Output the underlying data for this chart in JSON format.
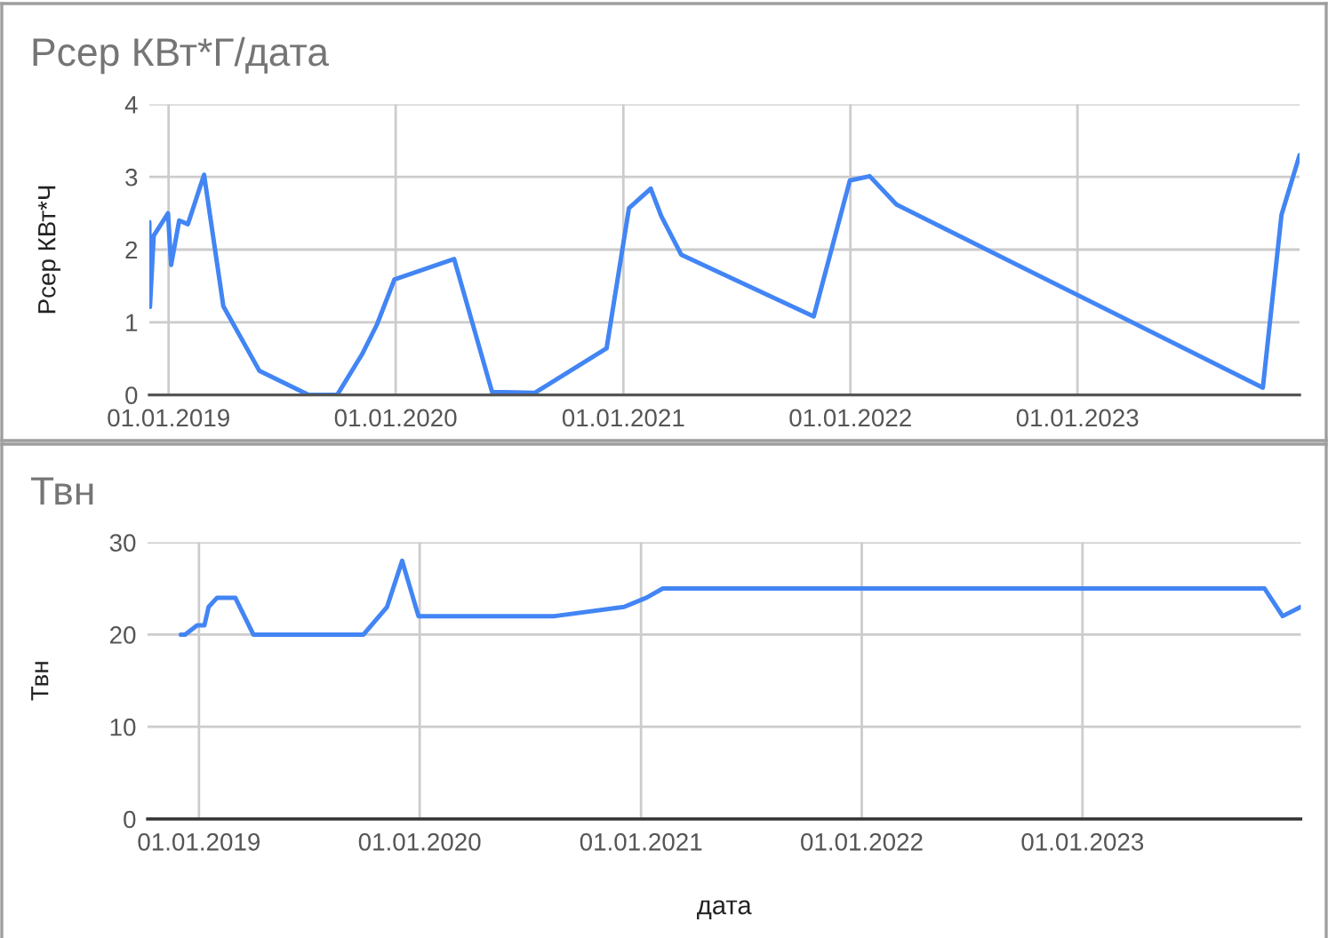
{
  "chart_data": [
    {
      "type": "line",
      "title": "Рсер КВт*Г/дата",
      "ylabel": "Рсер КВт*Ч",
      "x": [
        "2018-12-01",
        "2018-12-02",
        "2018-12-08",
        "2018-12-31",
        "2019-01-05",
        "2019-01-18",
        "2019-02-01",
        "2019-02-27",
        "2019-03-30",
        "2019-05-27",
        "2019-08-14",
        "2019-09-29",
        "2019-11-08",
        "2019-12-02",
        "2019-12-30",
        "2020-04-04",
        "2020-06-04",
        "2020-08-12",
        "2020-12-05",
        "2021-01-10",
        "2021-02-14",
        "2021-03-03",
        "2021-04-04",
        "2021-11-03",
        "2021-12-31",
        "2022-02-01",
        "2022-03-16",
        "2023-10-26",
        "2023-11-25",
        "2023-12-24"
      ],
      "series": [
        {
          "color": "#4285f4",
          "values": [
            2.38,
            1.21,
            2.19,
            2.5,
            1.79,
            2.4,
            2.35,
            3.03,
            1.22,
            0.33,
            0,
            0,
            0.56,
            0.97,
            1.59,
            1.87,
            0.04,
            0.03,
            0.64,
            2.57,
            2.84,
            2.46,
            1.93,
            1.08,
            2.95,
            3.01,
            2.62,
            0.1,
            2.48,
            3.3
          ]
        }
      ],
      "xlim": [
        "2018-12-01",
        "2023-12-24"
      ],
      "xticks": [
        {
          "value": "2019-01-01",
          "label": "01.01.2019"
        },
        {
          "value": "2020-01-01",
          "label": "01.01.2020"
        },
        {
          "value": "2021-01-01",
          "label": "01.01.2021"
        },
        {
          "value": "2022-01-01",
          "label": "01.01.2022"
        },
        {
          "value": "2023-01-01",
          "label": "01.01.2023"
        }
      ],
      "ylim": [
        0,
        4
      ],
      "yticks": [
        0,
        1,
        2,
        3,
        4
      ],
      "grid": true
    },
    {
      "type": "line",
      "title": "Твн",
      "ylabel": "Твн",
      "xlabel": "дата",
      "x": [
        "2018-12-02",
        "2018-12-09",
        "2018-12-29",
        "2019-01-10",
        "2019-01-17",
        "2019-01-31",
        "2019-03-02",
        "2019-04-01",
        "2019-09-30",
        "2019-11-08",
        "2019-12-03",
        "2019-12-30",
        "2020-08-11",
        "2020-12-04",
        "2021-01-10",
        "2021-02-06",
        "2023-10-29",
        "2023-11-28",
        "2023-12-28"
      ],
      "series": [
        {
          "color": "#4285f4",
          "values": [
            20,
            20,
            21,
            21,
            23,
            24,
            24,
            20,
            20,
            23,
            28,
            22,
            22,
            23,
            24,
            25,
            25,
            22,
            23
          ]
        }
      ],
      "xlim": [
        "2018-10-08",
        "2023-12-28"
      ],
      "xticks": [
        {
          "value": "2019-01-01",
          "label": "01.01.2019"
        },
        {
          "value": "2020-01-01",
          "label": "01.01.2020"
        },
        {
          "value": "2021-01-01",
          "label": "01.01.2021"
        },
        {
          "value": "2022-01-01",
          "label": "01.01.2022"
        },
        {
          "value": "2023-01-01",
          "label": "01.01.2023"
        }
      ],
      "ylim": [
        0,
        30
      ],
      "yticks": [
        0,
        10,
        20,
        30
      ],
      "grid": true
    }
  ]
}
